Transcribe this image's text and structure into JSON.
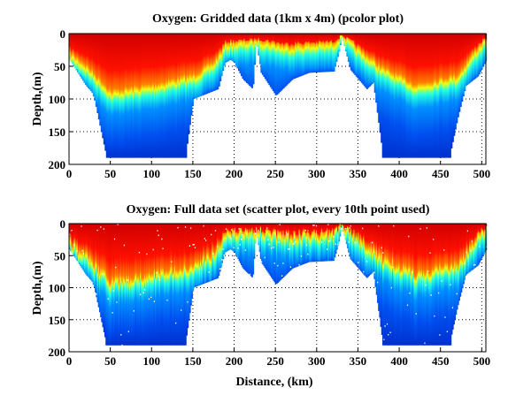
{
  "chart_data": [
    {
      "type": "heatmap",
      "title": "Oxygen: Gridded data (1km x 4m) (pcolor plot)",
      "xlabel": "",
      "ylabel": "Depth,(m)",
      "xlim": [
        0,
        505
      ],
      "ylim": [
        0,
        200
      ],
      "y_reversed": true,
      "x_ticks": [
        "0",
        "50",
        "100",
        "150",
        "200",
        "250",
        "300",
        "350",
        "400",
        "450",
        "500"
      ],
      "y_ticks": [
        "0",
        "50",
        "100",
        "150",
        "200"
      ],
      "grid": true,
      "colormap": "jet",
      "seabed_depth_profile": {
        "distance_km": [
          0,
          10,
          20,
          27,
          30,
          45,
          140,
          150,
          160,
          170,
          180,
          188,
          195,
          200,
          210,
          222,
          226,
          232,
          250,
          270,
          290,
          320,
          326,
          330,
          340,
          360,
          368,
          380,
          460,
          470,
          480,
          495,
          505
        ],
        "depth_m": [
          40,
          60,
          80,
          90,
          100,
          190,
          190,
          100,
          95,
          90,
          85,
          45,
          40,
          45,
          70,
          85,
          10,
          60,
          95,
          70,
          60,
          58,
          30,
          5,
          55,
          85,
          75,
          190,
          190,
          130,
          80,
          65,
          40
        ]
      },
      "oxycline_depth_profile": {
        "distance_km": [
          0,
          20,
          50,
          100,
          150,
          175,
          190,
          230,
          260,
          320,
          330,
          350,
          380,
          420,
          470,
          490,
          505
        ],
        "depth_m": [
          35,
          55,
          95,
          85,
          70,
          50,
          20,
          15,
          25,
          20,
          5,
          30,
          60,
          85,
          70,
          35,
          10
        ]
      }
    },
    {
      "type": "scatter",
      "title": "Oxygen: Full data set (scatter plot, every 10th point used)",
      "xlabel": "Distance, (km)",
      "ylabel": "Depth,(m)",
      "xlim": [
        0,
        505
      ],
      "ylim": [
        0,
        200
      ],
      "y_reversed": true,
      "x_ticks": [
        "0",
        "50",
        "100",
        "150",
        "200",
        "250",
        "300",
        "350",
        "400",
        "450",
        "500"
      ],
      "y_ticks": [
        "0",
        "50",
        "100",
        "150",
        "200"
      ],
      "grid": true,
      "colormap": "jet"
    }
  ]
}
